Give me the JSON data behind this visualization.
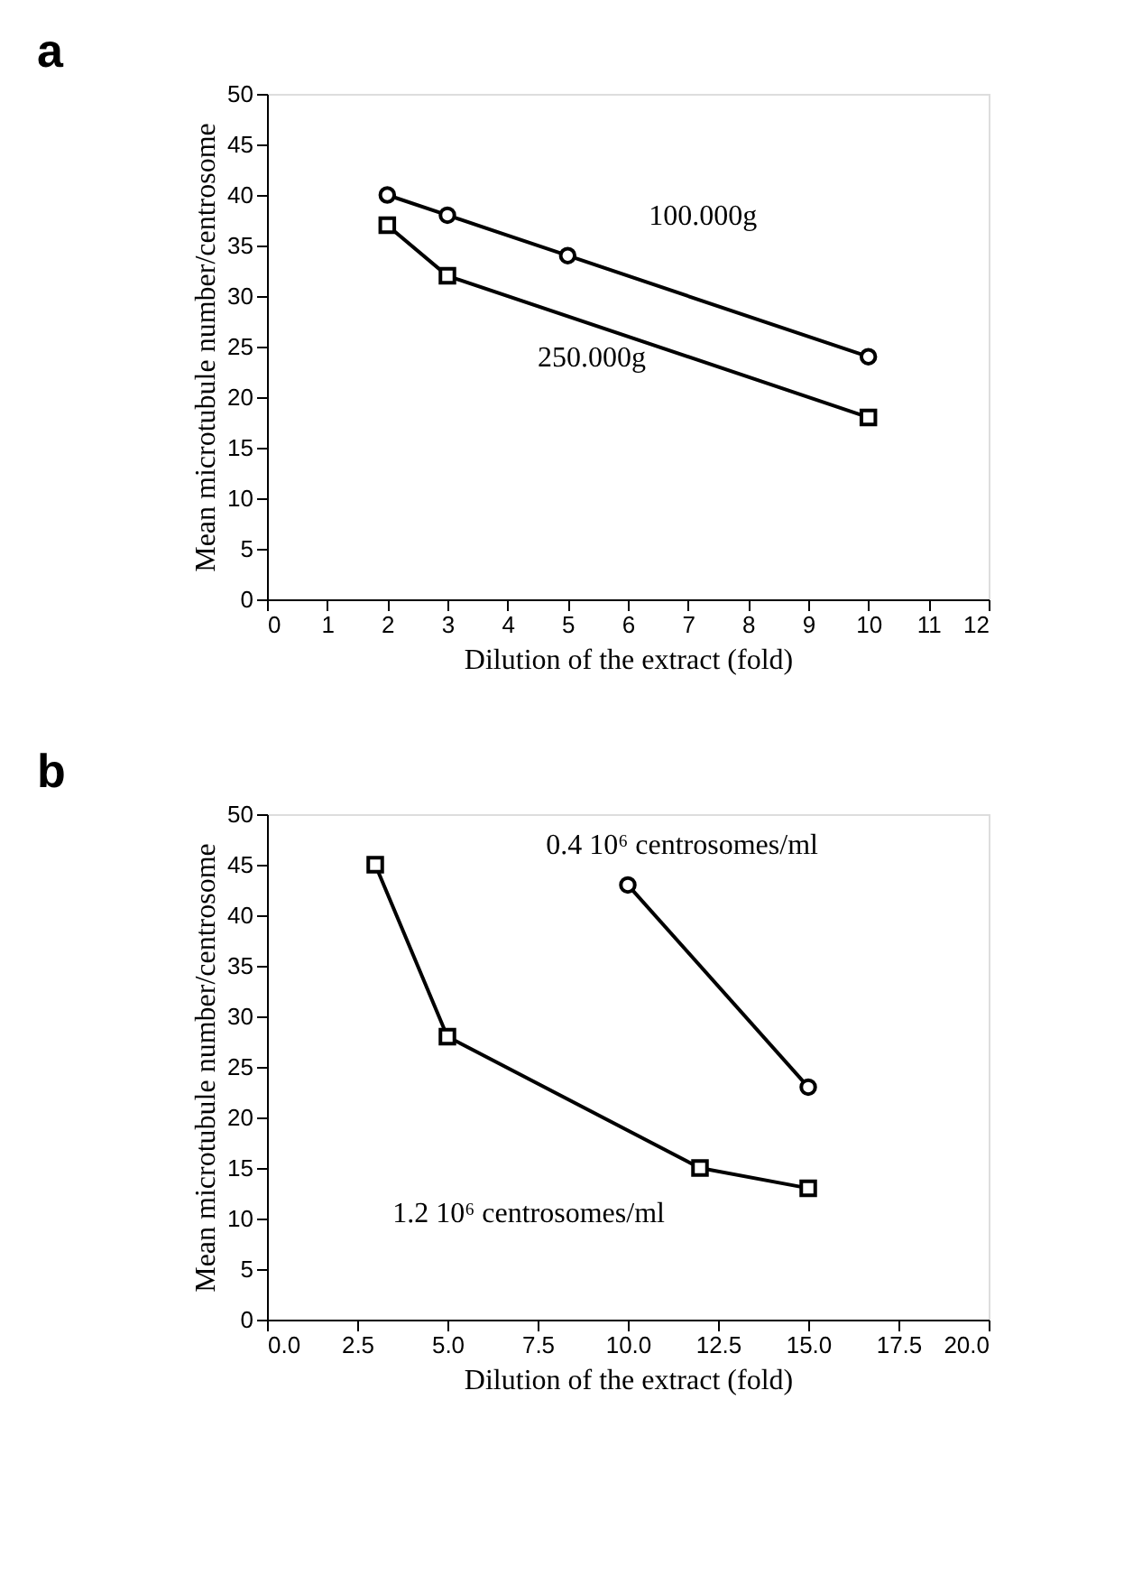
{
  "chart_data": [
    {
      "type": "line",
      "title": "a",
      "xlabel": "Dilution of the extract (fold)",
      "ylabel": "Mean microtubule number/centrosome",
      "xlim": [
        0,
        12
      ],
      "xticks": [
        0,
        1,
        2,
        3,
        4,
        5,
        6,
        7,
        8,
        9,
        10,
        11,
        12
      ],
      "ylim": [
        0,
        50
      ],
      "yticks": [
        0,
        5,
        10,
        15,
        20,
        25,
        30,
        35,
        40,
        45,
        50
      ],
      "grid": false,
      "legend": false,
      "series": [
        {
          "name": "100.000g",
          "color": "#000000",
          "marker": "circle",
          "x": [
            2,
            3,
            5,
            10
          ],
          "values": [
            40,
            38,
            34,
            24
          ]
        },
        {
          "name": "250.000g",
          "color": "#000000",
          "marker": "square",
          "x": [
            2,
            3,
            10
          ],
          "values": [
            37,
            32,
            18
          ]
        }
      ]
    },
    {
      "type": "line",
      "title": "b",
      "xlabel": "Dilution of the extract (fold)",
      "ylabel": "Mean microtubule number/centrosome",
      "xlim": [
        0,
        20
      ],
      "xticks": [
        {
          "value": 0,
          "label": "0.0"
        },
        2.5,
        {
          "value": 5,
          "label": "5.0"
        },
        7.5,
        {
          "value": 10,
          "label": "10.0"
        },
        12.5,
        {
          "value": 15,
          "label": "15.0"
        },
        17.5,
        {
          "value": 20,
          "label": "20.0"
        }
      ],
      "ylim": [
        0,
        50
      ],
      "yticks": [
        0,
        5,
        10,
        15,
        20,
        25,
        30,
        35,
        40,
        45,
        50
      ],
      "grid": false,
      "legend": false,
      "series": [
        {
          "name": "1.2 10⁶ centrosomes/ml",
          "color": "#000000",
          "marker": "square",
          "x": [
            3,
            5,
            12,
            15
          ],
          "values": [
            45,
            28,
            15,
            13
          ]
        },
        {
          "name": "0.4 10⁶ centrosomes/ml",
          "color": "#000000",
          "marker": "circle",
          "x": [
            10,
            15
          ],
          "values": [
            43,
            23
          ]
        }
      ]
    }
  ]
}
